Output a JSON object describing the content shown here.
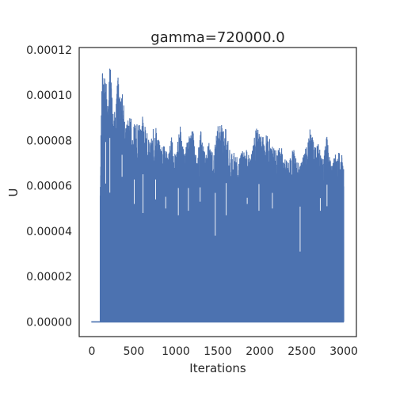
{
  "chart_data": {
    "type": "line",
    "title": "gamma=720000.0",
    "xlabel": "Iterations",
    "ylabel": "U",
    "xlim": [
      -150,
      3150
    ],
    "ylim": [
      -6.5e-06,
      0.000121
    ],
    "xticks": [
      0,
      500,
      1000,
      1500,
      2000,
      2500,
      3000
    ],
    "xtick_labels": [
      "0",
      "500",
      "1000",
      "1500",
      "2000",
      "2500",
      "3000"
    ],
    "yticks": [
      0,
      2e-05,
      4e-05,
      6e-05,
      8e-05,
      0.0001,
      0.00012
    ],
    "ytick_labels": [
      "0.00000",
      "0.00002",
      "0.00004",
      "0.00006",
      "0.00008",
      "0.00010",
      "0.00012"
    ],
    "grid": false,
    "legend": "none",
    "series_color": "#4c72b0",
    "series": [
      {
        "description_note": "rapidly oscillating signal; baseline ~0 until iteration 100, then spikes between 0 and local envelope",
        "baseline_until": 100,
        "x_end": 3000,
        "envelope_x": [
          100,
          110,
          120,
          140,
          160,
          190,
          220,
          250,
          280,
          310,
          340,
          370,
          400,
          450,
          500,
          550,
          600,
          650,
          700,
          750,
          800,
          850,
          900,
          950,
          1000,
          1050,
          1100,
          1150,
          1200,
          1250,
          1300,
          1350,
          1400,
          1450,
          1500,
          1550,
          1600,
          1650,
          1700,
          1750,
          1800,
          1850,
          1900,
          1950,
          2000,
          2050,
          2100,
          2150,
          2200,
          2250,
          2300,
          2350,
          2400,
          2450,
          2500,
          2550,
          2600,
          2650,
          2700,
          2750,
          2800,
          2850,
          2900,
          2950,
          3000
        ],
        "envelope_y": [
          6.5e-05,
          8.9e-05,
          0.000114,
          0.000105,
          0.000113,
          9.6e-05,
          0.000116,
          9.8e-05,
          9.3e-05,
          0.000109,
          9.7e-05,
          0.000105,
          8.6e-05,
          9.2e-05,
          8.7e-05,
          8.9e-05,
          9.2e-05,
          8.4e-05,
          7.9e-05,
          8.9e-05,
          8e-05,
          7.9e-05,
          7.5e-05,
          8.2e-05,
          7.3e-05,
          8.8e-05,
          7.4e-05,
          8.2e-05,
          8.6e-05,
          7.2e-05,
          8.5e-05,
          7.4e-05,
          8e-05,
          7.3e-05,
          8.8e-05,
          8.7e-05,
          8.5e-05,
          7.4e-05,
          7.5e-05,
          7.1e-05,
          7.8e-05,
          7.6e-05,
          7.4e-05,
          8.6e-05,
          8.4e-05,
          8.2e-05,
          8.3e-05,
          7.9e-05,
          7.5e-05,
          7.8e-05,
          7.2e-05,
          7.1e-05,
          7.7e-05,
          7e-05,
          7.1e-05,
          7.7e-05,
          8.6e-05,
          7.8e-05,
          7.9e-05,
          7.1e-05,
          8.4e-05,
          7e-05,
          7.4e-05,
          7.5e-05,
          7.4e-05
        ]
      }
    ],
    "dips_x": [
      165,
      215,
      360,
      505,
      610,
      760,
      880,
      1030,
      1150,
      1290,
      1470,
      1600,
      1850,
      1990,
      2150,
      2480,
      2720,
      2800
    ],
    "dips_y": [
      6.1e-05,
      5.7e-05,
      6.4e-05,
      5.2e-05,
      4.8e-05,
      5.4e-05,
      5e-05,
      4.7e-05,
      4.9e-05,
      5.3e-05,
      3.8e-05,
      4.7e-05,
      5.2e-05,
      4.9e-05,
      5e-05,
      3.1e-05,
      4.9e-05,
      5.1e-05
    ]
  }
}
